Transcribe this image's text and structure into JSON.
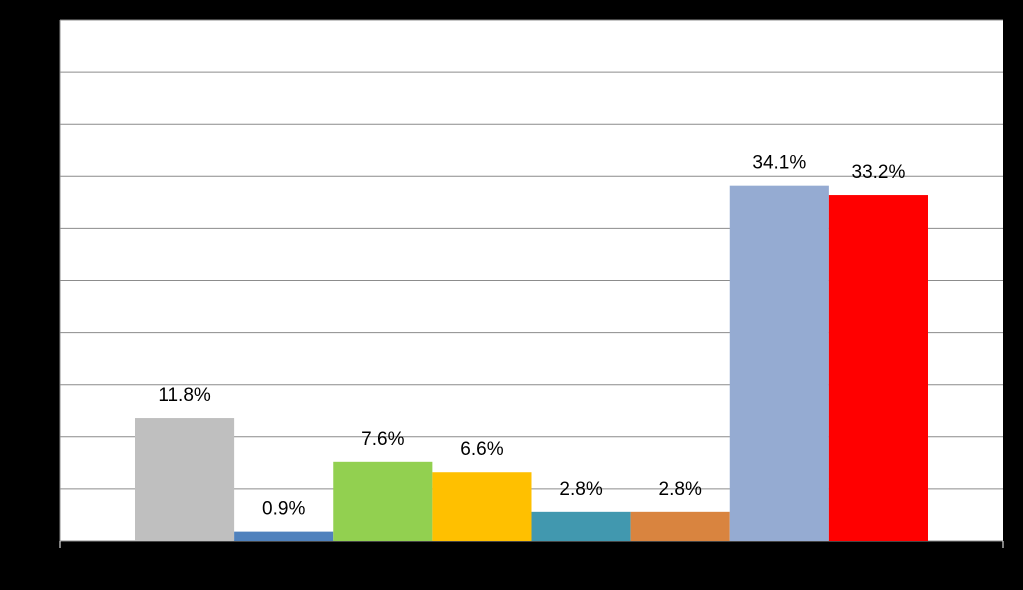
{
  "chart_data": {
    "type": "bar",
    "values": [
      11.8,
      0.9,
      7.6,
      6.6,
      2.8,
      2.8,
      34.1,
      33.2
    ],
    "value_labels": [
      "11.8%",
      "0.9%",
      "7.6%",
      "6.6%",
      "2.8%",
      "2.8%",
      "34.1%",
      "33.2%"
    ],
    "colors": [
      "#bfbfbf",
      "#4f81bd",
      "#92d050",
      "#ffc000",
      "#4198af",
      "#d9843f",
      "#95abd2",
      "#ff0000"
    ],
    "ylim": [
      0,
      50
    ],
    "yticks": [
      0,
      5,
      10,
      15,
      20,
      25,
      30,
      35,
      40,
      45,
      50
    ],
    "grid": true
  }
}
